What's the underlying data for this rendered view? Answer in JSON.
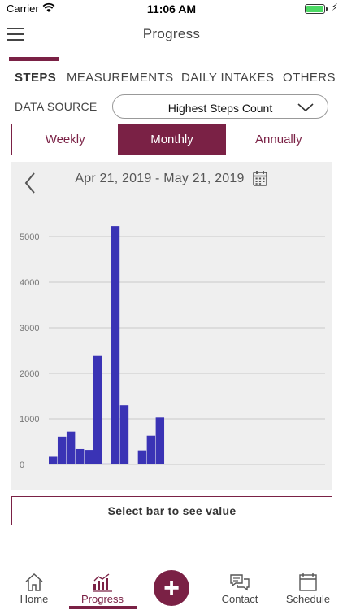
{
  "status_bar": {
    "carrier": "Carrier",
    "time": "11:06 AM"
  },
  "header": {
    "title": "Progress"
  },
  "tabs": [
    {
      "label": "STEPS",
      "active": true
    },
    {
      "label": "MEASUREMENTS",
      "active": false
    },
    {
      "label": "DAILY INTAKES",
      "active": false
    },
    {
      "label": "OTHERS",
      "active": false
    }
  ],
  "data_source": {
    "label": "DATA SOURCE",
    "value": "Highest Steps Count"
  },
  "period_segments": [
    {
      "label": "Weekly",
      "selected": false
    },
    {
      "label": "Monthly",
      "selected": true
    },
    {
      "label": "Annually",
      "selected": false
    }
  ],
  "date_range": "Apr 21, 2019 - May 21, 2019",
  "chart_data": {
    "type": "bar",
    "ylim": [
      0,
      5000
    ],
    "y_ticks": [
      "0",
      "1000",
      "2000",
      "3000",
      "4000",
      "5000"
    ],
    "grid": true,
    "series_color": "#3a33b5",
    "values": [
      170,
      610,
      720,
      340,
      320,
      2380,
      20,
      5230,
      1300,
      0,
      310,
      630,
      1030,
      0,
      0,
      0,
      0,
      0,
      0,
      0,
      0,
      0,
      0,
      0,
      0,
      0,
      0,
      0,
      0,
      0,
      0
    ]
  },
  "value_prompt": "Select bar to see value",
  "tab_bar": {
    "home": "Home",
    "progress": "Progress",
    "contact": "Contact",
    "schedule": "Schedule"
  },
  "colors": {
    "accent": "#7a2145",
    "bar": "#3a33b5"
  }
}
